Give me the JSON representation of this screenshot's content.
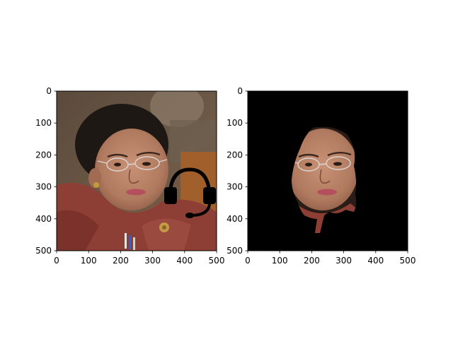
{
  "chart_data": [
    {
      "type": "image",
      "title": "",
      "xlabel": "",
      "ylabel": "",
      "xlim": [
        0,
        500
      ],
      "ylim": [
        500,
        0
      ],
      "xticks": [
        0,
        100,
        200,
        300,
        400,
        500
      ],
      "yticks": [
        0,
        100,
        200,
        300,
        400,
        500
      ],
      "grid": false,
      "content": "photo of a woman wearing glasses and a red top, with a black headset icon overlay"
    },
    {
      "type": "image",
      "title": "",
      "xlabel": "",
      "ylabel": "",
      "xlim": [
        0,
        500
      ],
      "ylim": [
        500,
        0
      ],
      "xticks": [
        0,
        100,
        200,
        300,
        400,
        500
      ],
      "yticks": [
        0,
        100,
        200,
        300,
        400,
        500
      ],
      "grid": false,
      "background": "#000000",
      "content": "segmented face region on black background"
    }
  ],
  "icons": {
    "overlay": "headset-icon"
  },
  "colors": {
    "mask_background": "#000000",
    "skin": "#b98569",
    "clothing": "#8e3f35"
  }
}
